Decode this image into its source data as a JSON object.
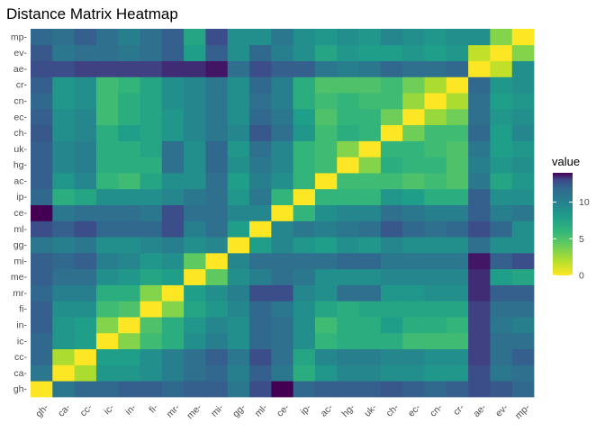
{
  "chart_data": {
    "type": "heatmap",
    "title": "Distance Matrix Heatmap",
    "xlabel": "",
    "ylabel": "",
    "labels": [
      "gh-",
      "ca-",
      "cc-",
      "ic-",
      "in-",
      "fi-",
      "mr-",
      "me-",
      "mi-",
      "gg-",
      "ml-",
      "ce-",
      "ip-",
      "ac-",
      "hg-",
      "uk-",
      "ch-",
      "ec-",
      "cn-",
      "cr-",
      "ae-",
      "ev-",
      "mp-"
    ],
    "legend": {
      "title": "value",
      "ticks": [
        0,
        5,
        10
      ],
      "range": [
        0,
        14
      ],
      "position": "right"
    },
    "colorscale": "viridis-reversed",
    "values": [
      [
        0.0,
        9.5,
        10.5,
        10.5,
        11.0,
        11.0,
        10.5,
        11.0,
        11.0,
        9.5,
        12.0,
        14.0,
        10.5,
        11.0,
        11.0,
        11.0,
        11.5,
        11.0,
        10.5,
        11.0,
        12.0,
        11.5,
        10.5
      ],
      [
        9.5,
        0.0,
        2.0,
        7.5,
        7.5,
        8.0,
        9.0,
        10.0,
        10.5,
        9.0,
        11.0,
        9.5,
        6.0,
        7.5,
        8.5,
        8.5,
        8.0,
        8.0,
        7.5,
        7.5,
        12.0,
        9.5,
        10.0
      ],
      [
        10.5,
        2.0,
        0.0,
        7.0,
        7.0,
        8.0,
        9.0,
        10.0,
        11.0,
        9.5,
        12.0,
        10.0,
        6.5,
        8.5,
        9.0,
        9.0,
        8.5,
        8.5,
        8.0,
        8.0,
        12.5,
        10.0,
        11.0
      ],
      [
        10.5,
        7.5,
        7.0,
        0.0,
        3.0,
        5.0,
        6.0,
        8.0,
        9.0,
        8.0,
        10.5,
        10.0,
        8.0,
        5.5,
        6.0,
        6.0,
        6.0,
        5.0,
        5.0,
        5.0,
        12.5,
        10.0,
        10.0
      ],
      [
        11.0,
        7.5,
        7.0,
        3.0,
        0.0,
        4.5,
        6.0,
        7.5,
        8.5,
        8.0,
        10.5,
        10.0,
        8.0,
        5.0,
        6.0,
        6.0,
        7.0,
        6.0,
        6.0,
        5.5,
        12.5,
        9.5,
        9.0
      ],
      [
        11.0,
        8.0,
        8.0,
        5.0,
        4.5,
        0.0,
        3.0,
        6.5,
        7.5,
        8.5,
        10.5,
        9.5,
        8.0,
        6.5,
        6.0,
        6.5,
        6.5,
        6.5,
        6.5,
        6.5,
        12.5,
        10.0,
        10.0
      ],
      [
        10.5,
        9.0,
        9.0,
        6.0,
        6.0,
        3.0,
        0.0,
        7.0,
        8.0,
        9.0,
        12.0,
        12.0,
        8.5,
        8.0,
        10.0,
        10.0,
        7.5,
        7.5,
        8.0,
        8.0,
        13.0,
        11.0,
        11.0
      ],
      [
        11.0,
        10.0,
        10.0,
        8.0,
        7.5,
        6.5,
        7.0,
        0.0,
        4.0,
        8.0,
        9.0,
        10.0,
        9.5,
        8.0,
        8.0,
        8.0,
        8.5,
        8.5,
        8.5,
        8.5,
        13.0,
        7.0,
        6.5
      ],
      [
        11.0,
        10.5,
        11.0,
        9.0,
        8.5,
        7.5,
        8.0,
        4.0,
        0.0,
        8.5,
        10.0,
        10.0,
        10.0,
        10.0,
        10.5,
        10.5,
        9.5,
        9.5,
        9.5,
        9.5,
        13.5,
        11.0,
        12.0
      ],
      [
        9.5,
        9.0,
        9.5,
        8.0,
        8.0,
        8.5,
        9.0,
        8.0,
        8.5,
        0.0,
        7.0,
        8.5,
        7.5,
        7.0,
        8.0,
        7.5,
        8.5,
        8.0,
        8.0,
        8.0,
        10.0,
        8.0,
        8.0
      ],
      [
        12.0,
        11.0,
        12.0,
        10.5,
        10.5,
        10.5,
        12.0,
        9.0,
        10.0,
        7.0,
        0.0,
        8.5,
        9.5,
        9.0,
        9.5,
        10.0,
        11.5,
        10.5,
        10.0,
        10.5,
        12.0,
        10.5,
        8.0
      ],
      [
        14.0,
        9.5,
        10.0,
        10.0,
        10.0,
        9.5,
        12.0,
        10.0,
        10.0,
        8.5,
        8.5,
        0.0,
        5.5,
        8.0,
        8.5,
        8.5,
        10.0,
        9.5,
        9.0,
        9.0,
        11.0,
        9.0,
        9.5
      ],
      [
        10.5,
        6.0,
        6.5,
        8.0,
        8.0,
        8.0,
        8.5,
        9.5,
        10.0,
        7.5,
        9.5,
        5.5,
        0.0,
        5.5,
        5.5,
        5.5,
        7.5,
        7.0,
        6.0,
        6.0,
        11.0,
        8.0,
        8.0
      ],
      [
        11.0,
        7.5,
        8.5,
        5.5,
        5.0,
        6.5,
        8.0,
        8.0,
        10.0,
        7.0,
        9.0,
        8.0,
        5.5,
        0.0,
        5.0,
        5.0,
        5.0,
        4.5,
        5.0,
        4.5,
        9.5,
        6.5,
        7.5
      ],
      [
        11.0,
        8.5,
        9.0,
        6.0,
        6.0,
        6.0,
        10.0,
        8.0,
        10.5,
        8.0,
        9.5,
        8.5,
        5.5,
        5.0,
        0.0,
        3.0,
        6.0,
        5.5,
        5.5,
        4.5,
        9.0,
        7.5,
        8.0
      ],
      [
        11.0,
        8.5,
        9.0,
        6.0,
        6.0,
        6.5,
        10.0,
        8.0,
        10.5,
        7.5,
        10.0,
        8.5,
        5.5,
        5.0,
        3.0,
        0.0,
        5.5,
        5.5,
        5.0,
        4.5,
        9.5,
        7.0,
        7.5
      ],
      [
        11.5,
        8.0,
        8.5,
        6.0,
        7.0,
        6.5,
        7.5,
        8.5,
        9.5,
        8.5,
        11.5,
        10.0,
        7.5,
        5.0,
        6.0,
        5.5,
        0.0,
        3.5,
        5.0,
        5.0,
        10.5,
        7.0,
        8.5
      ],
      [
        11.0,
        8.0,
        8.5,
        5.0,
        6.0,
        6.5,
        7.5,
        8.5,
        9.5,
        8.0,
        10.5,
        9.5,
        7.0,
        4.5,
        5.5,
        5.5,
        3.5,
        0.0,
        2.5,
        3.5,
        10.0,
        7.5,
        8.0
      ],
      [
        10.5,
        7.5,
        8.0,
        5.0,
        6.0,
        6.5,
        8.0,
        8.5,
        9.5,
        8.0,
        10.0,
        9.0,
        6.0,
        5.0,
        5.5,
        5.0,
        5.0,
        2.5,
        0.0,
        2.0,
        10.0,
        7.0,
        7.5
      ],
      [
        11.0,
        7.5,
        8.0,
        5.0,
        5.5,
        6.5,
        8.0,
        8.5,
        9.5,
        8.0,
        10.5,
        9.0,
        6.0,
        4.5,
        4.5,
        4.5,
        5.0,
        3.5,
        2.0,
        0.0,
        10.5,
        7.5,
        8.0
      ],
      [
        12.0,
        12.0,
        12.5,
        12.5,
        12.5,
        12.5,
        13.0,
        13.0,
        13.5,
        10.0,
        12.0,
        11.0,
        11.0,
        9.5,
        9.0,
        9.5,
        10.5,
        10.0,
        10.0,
        10.5,
        0.0,
        1.5,
        8.0
      ],
      [
        11.5,
        9.5,
        10.0,
        10.0,
        9.5,
        10.0,
        11.0,
        7.0,
        11.0,
        8.0,
        10.5,
        9.0,
        8.0,
        6.5,
        7.5,
        7.0,
        7.0,
        7.5,
        7.0,
        7.5,
        1.5,
        0.0,
        3.0
      ],
      [
        10.5,
        10.0,
        11.0,
        10.0,
        9.0,
        10.0,
        11.0,
        6.5,
        12.0,
        8.0,
        8.0,
        9.5,
        8.0,
        7.5,
        8.0,
        7.5,
        8.5,
        8.0,
        7.5,
        8.0,
        8.0,
        3.0,
        0.0
      ]
    ]
  }
}
